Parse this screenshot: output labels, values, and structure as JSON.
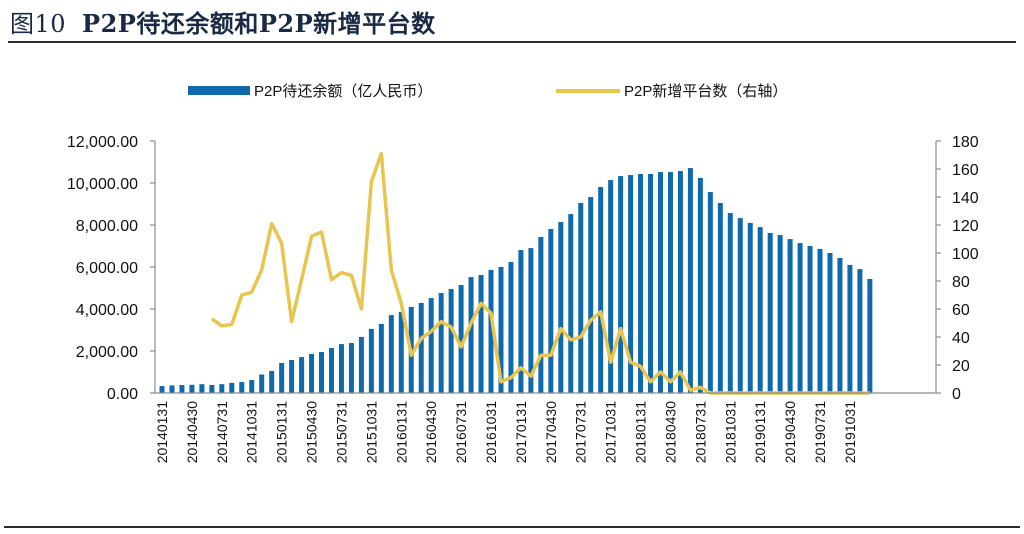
{
  "figure": {
    "number": "图10",
    "title": "P2P待还余额和P2P新增平台数"
  },
  "colors": {
    "bars": "#0f6aad",
    "line": "#e8c54f",
    "axis": "#8c8c8c",
    "title": "#1a2a44"
  },
  "chart_data": {
    "type": "bar",
    "title": "P2P待还余额和P2P新增平台数",
    "legend_position": "top",
    "x": [
      "201401",
      "201402",
      "201403",
      "201404",
      "201405",
      "201406",
      "201407",
      "201408",
      "201409",
      "201410",
      "201411",
      "201412",
      "201501",
      "201502",
      "201503",
      "201504",
      "201505",
      "201506",
      "201507",
      "201508",
      "201509",
      "201510",
      "201511",
      "201512",
      "201601",
      "201602",
      "201603",
      "201604",
      "201605",
      "201606",
      "201607",
      "201608",
      "201609",
      "201610",
      "201611",
      "201612",
      "201701",
      "201702",
      "201703",
      "201704",
      "201705",
      "201706",
      "201707",
      "201708",
      "201709",
      "201710",
      "201711",
      "201712",
      "201801",
      "201802",
      "201803",
      "201804",
      "201805",
      "201806",
      "201807",
      "201808",
      "201809",
      "201810",
      "201811",
      "201812",
      "201901",
      "201902",
      "201903",
      "201904",
      "201905",
      "201906",
      "201907",
      "201908",
      "201909",
      "201910",
      "201911",
      "201912"
    ],
    "x_tick_labels": [
      "20140131",
      "20140430",
      "20140731",
      "20141031",
      "20150131",
      "20150430",
      "20150731",
      "20151031",
      "20160131",
      "20160430",
      "20160731",
      "20161031",
      "20170131",
      "20170430",
      "20170731",
      "20171031",
      "20180131",
      "20180430",
      "20180731",
      "20181031",
      "20190131",
      "20190430",
      "20190731",
      "20191031"
    ],
    "x_tick_every": 3,
    "series": [
      {
        "name": "P2P待还余额（亿人民币）",
        "type": "bar",
        "axis": "left",
        "values": [
          330,
          360,
          380,
          390,
          420,
          380,
          420,
          480,
          520,
          620,
          880,
          1050,
          1430,
          1570,
          1710,
          1860,
          1950,
          2140,
          2330,
          2380,
          2670,
          3050,
          3290,
          3710,
          3860,
          4100,
          4290,
          4520,
          4760,
          4950,
          5140,
          5520,
          5620,
          5860,
          6000,
          6240,
          6810,
          6900,
          7430,
          7810,
          8140,
          8520,
          9050,
          9330,
          9810,
          10140,
          10330,
          10380,
          10430,
          10430,
          10520,
          10520,
          10570,
          10710,
          10240,
          9570,
          9050,
          8570,
          8330,
          8100,
          7900,
          7620,
          7520,
          7330,
          7140,
          7000,
          6860,
          6670,
          6430,
          6100,
          5900,
          5430
        ]
      },
      {
        "name": "P2P新增平台数（右轴）",
        "type": "line",
        "axis": "right",
        "values": [
          null,
          null,
          null,
          null,
          null,
          53,
          48,
          49,
          70,
          72,
          88,
          121,
          107,
          51,
          81,
          112,
          115,
          81,
          86,
          84,
          60,
          151,
          171,
          88,
          64,
          27,
          39,
          44,
          51,
          47,
          33,
          50,
          64,
          57,
          8,
          11,
          18,
          12,
          27,
          27,
          46,
          38,
          40,
          52,
          58,
          22,
          46,
          22,
          19,
          8,
          15,
          8,
          15,
          2,
          4,
          0,
          0,
          0,
          0,
          0,
          0,
          0,
          0,
          0,
          0,
          0,
          0,
          0,
          0,
          0,
          0,
          0
        ]
      }
    ],
    "y_left": {
      "label": "",
      "min": 0,
      "max": 12000,
      "ticks": [
        "0.00",
        "2,000.00",
        "4,000.00",
        "6,000.00",
        "8,000.00",
        "10,000.00",
        "12,000.00"
      ],
      "tick_values": [
        0,
        2000,
        4000,
        6000,
        8000,
        10000,
        12000
      ]
    },
    "y_right": {
      "label": "",
      "min": 0,
      "max": 180,
      "ticks": [
        "0",
        "20",
        "40",
        "60",
        "80",
        "100",
        "120",
        "140",
        "160",
        "180"
      ],
      "tick_values": [
        0,
        20,
        40,
        60,
        80,
        100,
        120,
        140,
        160,
        180
      ]
    },
    "xlabel": "",
    "grid": false
  }
}
